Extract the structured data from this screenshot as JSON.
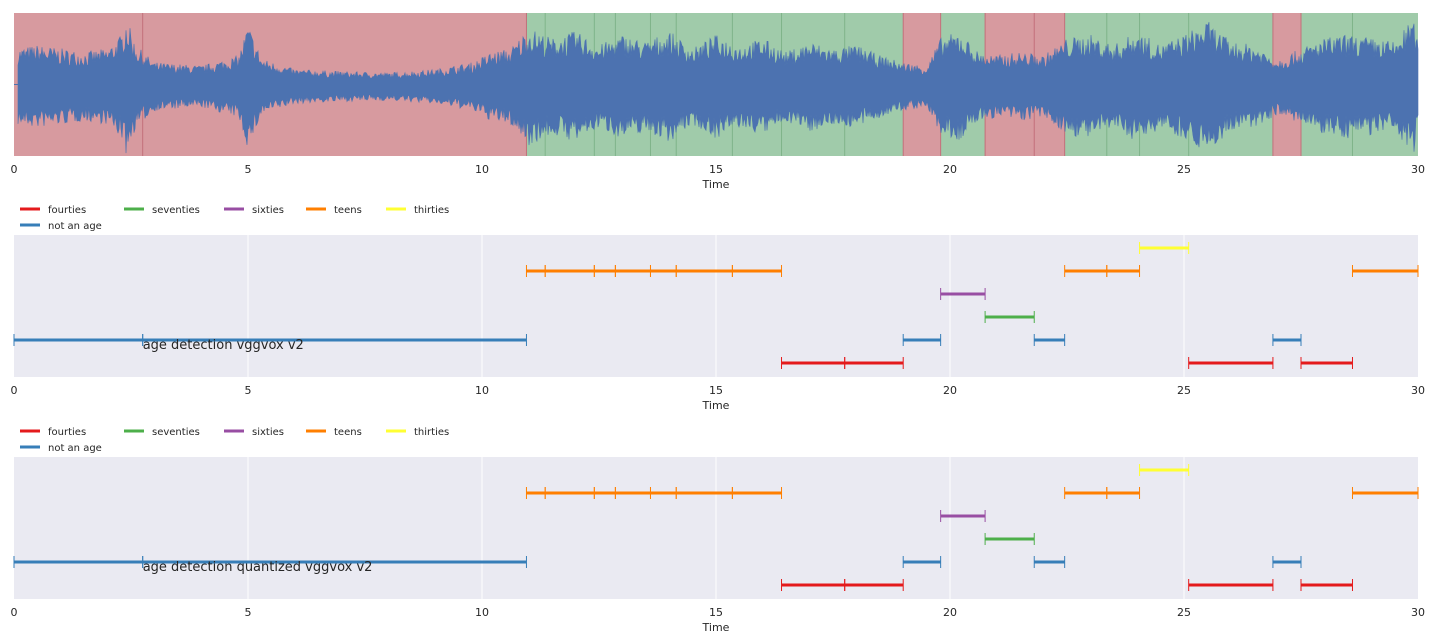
{
  "chart_data": [
    {
      "type": "area",
      "panel": "waveform",
      "xlabel": "Time",
      "xlim": [
        0,
        30
      ],
      "xticks": [
        0,
        5,
        10,
        15,
        20,
        25,
        30
      ],
      "grid": false,
      "waveform_color": "#4c72b0",
      "region_colors": {
        "red": "#d79a9f",
        "green": "#a0cbaa"
      },
      "regions": [
        {
          "start": 0.0,
          "end": 10.95,
          "color": "red"
        },
        {
          "start": 10.95,
          "end": 19.0,
          "color": "green"
        },
        {
          "start": 19.0,
          "end": 19.8,
          "color": "red"
        },
        {
          "start": 19.8,
          "end": 20.75,
          "color": "green"
        },
        {
          "start": 20.75,
          "end": 22.45,
          "color": "red"
        },
        {
          "start": 22.45,
          "end": 26.9,
          "color": "green"
        },
        {
          "start": 26.9,
          "end": 27.5,
          "color": "red"
        },
        {
          "start": 27.5,
          "end": 30.0,
          "color": "green"
        }
      ],
      "region_boundaries": [
        2.75,
        10.95,
        11.35,
        12.4,
        12.85,
        13.6,
        14.15,
        15.35,
        16.4,
        17.75,
        19.0,
        19.8,
        20.75,
        21.8,
        22.45,
        23.35,
        24.05,
        25.1,
        26.9,
        27.5,
        28.6
      ],
      "amplitude_envelope": [
        [
          0.0,
          0.55
        ],
        [
          0.5,
          0.6
        ],
        [
          1.0,
          0.55
        ],
        [
          1.5,
          0.5
        ],
        [
          2.0,
          0.55
        ],
        [
          2.3,
          0.75
        ],
        [
          2.4,
          1.0
        ],
        [
          2.6,
          0.6
        ],
        [
          3.0,
          0.35
        ],
        [
          4.0,
          0.3
        ],
        [
          4.8,
          0.45
        ],
        [
          5.0,
          0.9
        ],
        [
          5.3,
          0.4
        ],
        [
          6.0,
          0.25
        ],
        [
          7.0,
          0.22
        ],
        [
          8.0,
          0.2
        ],
        [
          9.0,
          0.25
        ],
        [
          9.8,
          0.35
        ],
        [
          10.2,
          0.5
        ],
        [
          10.6,
          0.55
        ],
        [
          11.0,
          0.85
        ],
        [
          11.5,
          0.7
        ],
        [
          12.0,
          0.8
        ],
        [
          12.5,
          0.6
        ],
        [
          13.0,
          0.75
        ],
        [
          13.5,
          0.65
        ],
        [
          14.0,
          0.8
        ],
        [
          14.5,
          0.55
        ],
        [
          15.0,
          0.75
        ],
        [
          15.5,
          0.6
        ],
        [
          16.0,
          0.7
        ],
        [
          16.5,
          0.5
        ],
        [
          17.0,
          0.65
        ],
        [
          17.5,
          0.55
        ],
        [
          18.0,
          0.6
        ],
        [
          18.5,
          0.45
        ],
        [
          19.0,
          0.35
        ],
        [
          19.5,
          0.3
        ],
        [
          19.8,
          0.7
        ],
        [
          20.2,
          0.8
        ],
        [
          20.6,
          0.5
        ],
        [
          21.0,
          0.45
        ],
        [
          21.5,
          0.5
        ],
        [
          22.0,
          0.45
        ],
        [
          22.5,
          0.7
        ],
        [
          23.0,
          0.75
        ],
        [
          23.5,
          0.6
        ],
        [
          24.0,
          0.8
        ],
        [
          24.5,
          0.6
        ],
        [
          25.0,
          0.75
        ],
        [
          25.5,
          0.95
        ],
        [
          26.0,
          0.65
        ],
        [
          26.5,
          0.6
        ],
        [
          27.0,
          0.4
        ],
        [
          27.5,
          0.55
        ],
        [
          28.0,
          0.7
        ],
        [
          28.5,
          0.75
        ],
        [
          29.0,
          0.7
        ],
        [
          29.5,
          0.65
        ],
        [
          29.9,
          1.0
        ],
        [
          30.0,
          0.6
        ]
      ]
    },
    {
      "type": "timeline",
      "panel": "age-segments-1",
      "title": "age detection vggvox v2",
      "xlabel": "Time",
      "xlim": [
        0,
        30
      ],
      "xticks": [
        0,
        5,
        10,
        15,
        20,
        25,
        30
      ],
      "grid": true,
      "legend_position": "top-left",
      "legend": [
        "fourties",
        "not an age",
        "seventies",
        "sixties",
        "teens",
        "thirties"
      ],
      "series": [
        {
          "name": "thirties",
          "row": 0,
          "color": "#ffff33",
          "segments": [
            [
              24.05,
              25.1
            ]
          ]
        },
        {
          "name": "teens",
          "row": 1,
          "color": "#ff7f00",
          "segments": [
            [
              10.95,
              11.35
            ],
            [
              11.35,
              12.4
            ],
            [
              12.4,
              12.85
            ],
            [
              12.85,
              13.6
            ],
            [
              13.6,
              14.15
            ],
            [
              14.15,
              15.35
            ],
            [
              15.35,
              16.4
            ],
            [
              22.45,
              23.35
            ],
            [
              23.35,
              24.05
            ],
            [
              28.6,
              30.0
            ]
          ]
        },
        {
          "name": "sixties",
          "row": 2,
          "color": "#984ea3",
          "segments": [
            [
              19.8,
              20.75
            ]
          ]
        },
        {
          "name": "seventies",
          "row": 3,
          "color": "#4daf4a",
          "segments": [
            [
              20.75,
              21.8
            ]
          ]
        },
        {
          "name": "not an age",
          "row": 4,
          "color": "#377eb8",
          "segments": [
            [
              0.0,
              2.75
            ],
            [
              2.75,
              10.95
            ],
            [
              19.0,
              19.8
            ],
            [
              21.8,
              22.45
            ],
            [
              26.9,
              27.5
            ]
          ]
        },
        {
          "name": "fourties",
          "row": 5,
          "color": "#e41a1c",
          "segments": [
            [
              16.4,
              17.75
            ],
            [
              17.75,
              19.0
            ],
            [
              25.1,
              26.9
            ],
            [
              27.5,
              28.6
            ]
          ]
        }
      ]
    },
    {
      "type": "timeline",
      "panel": "age-segments-2",
      "title": "age detection quantized vggvox v2",
      "xlabel": "Time",
      "xlim": [
        0,
        30
      ],
      "xticks": [
        0,
        5,
        10,
        15,
        20,
        25,
        30
      ],
      "grid": true,
      "legend_position": "top-left",
      "legend": [
        "fourties",
        "not an age",
        "seventies",
        "sixties",
        "teens",
        "thirties"
      ],
      "series": [
        {
          "name": "thirties",
          "row": 0,
          "color": "#ffff33",
          "segments": [
            [
              24.05,
              25.1
            ]
          ]
        },
        {
          "name": "teens",
          "row": 1,
          "color": "#ff7f00",
          "segments": [
            [
              10.95,
              11.35
            ],
            [
              11.35,
              12.4
            ],
            [
              12.4,
              12.85
            ],
            [
              12.85,
              13.6
            ],
            [
              13.6,
              14.15
            ],
            [
              14.15,
              15.35
            ],
            [
              15.35,
              16.4
            ],
            [
              22.45,
              23.35
            ],
            [
              23.35,
              24.05
            ],
            [
              28.6,
              30.0
            ]
          ]
        },
        {
          "name": "sixties",
          "row": 2,
          "color": "#984ea3",
          "segments": [
            [
              19.8,
              20.75
            ]
          ]
        },
        {
          "name": "seventies",
          "row": 3,
          "color": "#4daf4a",
          "segments": [
            [
              20.75,
              21.8
            ]
          ]
        },
        {
          "name": "not an age",
          "row": 4,
          "color": "#377eb8",
          "segments": [
            [
              0.0,
              2.75
            ],
            [
              2.75,
              10.95
            ],
            [
              19.0,
              19.8
            ],
            [
              21.8,
              22.45
            ],
            [
              26.9,
              27.5
            ]
          ]
        },
        {
          "name": "fourties",
          "row": 5,
          "color": "#e41a1c",
          "segments": [
            [
              16.4,
              17.75
            ],
            [
              17.75,
              19.0
            ],
            [
              25.1,
              26.9
            ],
            [
              27.5,
              28.6
            ]
          ]
        }
      ]
    }
  ],
  "legend_colors": {
    "fourties": "#e41a1c",
    "not an age": "#377eb8",
    "seventies": "#4daf4a",
    "sixties": "#984ea3",
    "teens": "#ff7f00",
    "thirties": "#ffff33"
  }
}
